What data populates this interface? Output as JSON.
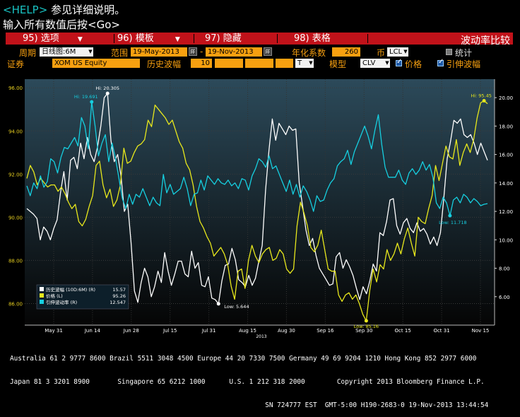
{
  "header": {
    "help_key": "<HELP>",
    "help_text": "参见详细说明。",
    "prompt": "输入所有数值后按<Go>"
  },
  "menu": {
    "tabs": [
      {
        "num": "95)",
        "label": "选项"
      },
      {
        "num": "96)",
        "label": "模板"
      },
      {
        "num": "97)",
        "label": "隐藏"
      },
      {
        "num": "98)",
        "label": "表格"
      }
    ],
    "title": "波动率比较"
  },
  "controls": {
    "period_label": "周期",
    "period_value": "日线图:6M",
    "range_label": "范围",
    "start_date": "19-May-2013",
    "date_sep": "-",
    "end_date": "19-Nov-2013",
    "annualize_label": "年化系数",
    "annualize_value": "260",
    "currency_label": "币",
    "currency_value": "LCL",
    "stats_label": "统计",
    "security_label": "证券",
    "security_value": "XOM US Equity",
    "hist_vol_label": "历史波幅",
    "hist_vol_value": "10",
    "hist_vol_unit": "T",
    "model_label": "模型",
    "model_value": "CLV",
    "price_label": "价格",
    "implied_label": "引伸波幅"
  },
  "colors": {
    "background": "#000000",
    "menubar": "#c1121a",
    "field": "#f7a010",
    "hist_vol": "#ffffff",
    "price": "#e8e81c",
    "implied_vol": "#16cfe0"
  },
  "chart_data": {
    "type": "line",
    "x_ticks": [
      "May 31",
      "Jun 14",
      "Jun 28",
      "Jul 15",
      "Jul 31",
      "Aug 15",
      "Aug 30",
      "Sep 16",
      "Sep 30",
      "Oct 15",
      "Oct 31",
      "Nov 15"
    ],
    "x_year": "2013",
    "left_axis": {
      "ticks": [
        "86.00",
        "88.00",
        "90.00",
        "92.00",
        "94.00",
        "96.00"
      ],
      "range": [
        85.0,
        96.4
      ]
    },
    "right_axis": {
      "ticks": [
        "6.00",
        "8.00",
        "10.00",
        "12.00",
        "14.00",
        "16.00",
        "18.00",
        "20.00"
      ],
      "range": [
        4.0,
        21.3
      ]
    },
    "series": [
      {
        "name": "历史波幅 (10D:6M) (R)",
        "legend_value": "15.57",
        "axis": "right",
        "color": "#ffffff",
        "values": [
          12.2,
          12.0,
          11.8,
          11.5,
          10.0,
          10.9,
          10.6,
          10.0,
          10.8,
          11.4,
          13.3,
          14.8,
          12.8,
          15.6,
          15.8,
          15.0,
          16.8,
          15.7,
          17.2,
          16.0,
          15.5,
          16.5,
          18.0,
          20.0,
          20.3,
          17.0,
          15.5,
          16.0,
          14.5,
          12.0,
          12.5,
          9.8,
          6.4,
          5.6,
          7.0,
          8.0,
          7.4,
          6.0,
          6.7,
          7.8,
          7.0,
          9.1,
          7.8,
          6.8,
          7.6,
          8.5,
          8.5,
          7.6,
          7.4,
          9.2,
          8.0,
          8.4,
          6.8,
          6.7,
          7.4,
          5.9,
          5.8,
          5.5,
          7.1,
          8.2,
          8.3,
          9.4,
          8.6,
          7.2,
          7.0,
          6.7,
          7.5,
          6.8,
          7.3,
          8.5,
          9.6,
          13.5,
          16.3,
          18.5,
          17.0,
          18.2,
          17.8,
          17.4,
          18.0,
          17.7,
          17.8,
          14.0,
          12.4,
          10.7,
          9.6,
          10.1,
          8.9,
          8.0,
          7.6,
          7.2,
          6.8,
          6.9,
          8.8,
          9.1,
          8.0,
          8.6,
          8.1,
          7.5,
          6.6,
          5.8,
          6.7,
          6.2,
          7.1,
          8.3,
          7.8,
          10.5,
          10.3,
          11.3,
          12.8,
          12.9,
          11.0,
          10.4,
          11.2,
          11.5,
          10.8,
          10.5,
          11.2,
          10.6,
          10.8,
          10.4,
          9.7,
          10.2,
          9.6,
          10.5,
          12.9,
          15.7,
          16.9,
          18.4,
          18.2,
          18.5,
          17.4,
          17.2,
          17.4,
          16.8,
          16.0,
          16.8,
          16.2,
          15.6
        ]
      },
      {
        "name": "价格 (L)",
        "legend_value": "95.26",
        "axis": "left",
        "color": "#e8e81c",
        "values": [
          91.8,
          92.4,
          92.1,
          91.5,
          91.8,
          91.6,
          91.4,
          91.5,
          91.5,
          91.2,
          91.4,
          91.1,
          90.7,
          90.4,
          90.6,
          89.8,
          89.6,
          89.9,
          90.5,
          91.0,
          92.4,
          92.6,
          91.5,
          90.9,
          91.3,
          90.5,
          90.8,
          91.5,
          93.2,
          92.5,
          92.6,
          93.0,
          93.3,
          93.4,
          93.6,
          94.5,
          94.2,
          95.2,
          95.0,
          94.8,
          94.6,
          94.3,
          94.5,
          94.0,
          93.5,
          93.2,
          92.5,
          92.2,
          91.5,
          90.5,
          89.8,
          89.5,
          89.1,
          88.8,
          88.2,
          88.4,
          88.6,
          88.3,
          87.8,
          86.8,
          86.2,
          87.5,
          87.6,
          86.7,
          88.0,
          88.7,
          88.2,
          87.9,
          88.3,
          88.5,
          88.6,
          88.0,
          88.1,
          88.5,
          88.3,
          87.6,
          87.4,
          87.6,
          89.6,
          90.7,
          90.2,
          89.6,
          88.6,
          88.4,
          88.7,
          89.4,
          88.5,
          87.6,
          87.5,
          87.5,
          86.4,
          86.1,
          86.4,
          86.5,
          86.2,
          86.4,
          86.0,
          85.5,
          85.2,
          86.6,
          87.6,
          87.0,
          87.8,
          87.6,
          88.5,
          88.0,
          88.3,
          88.8,
          88.3,
          89.0,
          89.5,
          88.8,
          88.2,
          90.0,
          89.8,
          89.7,
          90.4,
          91.0,
          92.4,
          91.7,
          92.5,
          93.3,
          92.8,
          92.7,
          93.6,
          92.4,
          93.0,
          93.4,
          93.0,
          93.6,
          94.6,
          95.3,
          95.4,
          95.26
        ]
      },
      {
        "name": "引伸波动率 (R)",
        "legend_value": "12.547",
        "axis": "right",
        "color": "#16cfe0",
        "values": [
          13.8,
          13.1,
          14.0,
          13.6,
          14.5,
          13.7,
          14.1,
          15.7,
          15.5,
          14.7,
          15.8,
          16.5,
          16.4,
          16.8,
          17.2,
          16.6,
          18.6,
          18.0,
          16.4,
          19.7,
          18.0,
          15.9,
          16.8,
          17.4,
          15.5,
          16.8,
          15.7,
          14.3,
          12.9,
          12.2,
          13.2,
          12.5,
          13.2,
          13.0,
          13.6,
          13.0,
          12.4,
          13.0,
          12.6,
          12.4,
          14.6,
          13.3,
          13.9,
          13.2,
          13.4,
          13.6,
          14.4,
          13.6,
          12.4,
          13.2,
          13.3,
          14.2,
          13.5,
          14.5,
          14.2,
          13.9,
          14.3,
          14.0,
          13.9,
          14.2,
          13.8,
          14.0,
          13.6,
          14.3,
          14.2,
          13.5,
          14.5,
          15.0,
          15.7,
          15.5,
          15.1,
          15.9,
          15.0,
          15.2,
          14.6,
          14.0,
          13.4,
          14.2,
          13.2,
          13.9,
          13.0,
          13.8,
          13.4,
          12.8,
          12.0,
          13.1,
          12.7,
          12.8,
          13.5,
          14.0,
          14.3,
          15.2,
          15.5,
          15.7,
          16.3,
          15.3,
          16.2,
          16.8,
          17.4,
          18.0,
          17.3,
          16.4,
          17.7,
          18.8,
          16.7,
          15.1,
          14.4,
          14.4,
          14.4,
          14.9,
          14.2,
          13.9,
          14.7,
          15.0,
          14.6,
          14.9,
          15.5,
          14.9,
          15.3,
          14.4,
          12.6,
          12.2,
          13.0,
          12.6,
          11.7,
          12.8,
          13.0,
          12.6,
          13.2,
          13.0,
          12.6,
          12.9,
          12.7,
          12.4,
          12.5,
          12.547
        ]
      }
    ],
    "annotations": [
      {
        "text": "Hi: 20.305"
      },
      {
        "text": "Hi: 19.691"
      },
      {
        "text": "Low: 5.644"
      },
      {
        "text": "Hi: 95.45"
      },
      {
        "text": "Low: 85.16"
      },
      {
        "text": "Low: 11.718"
      }
    ]
  },
  "footer": {
    "line1": "Australia 61 2 9777 8600 Brazil 5511 3048 4500 Europe 44 20 7330 7500 Germany 49 69 9204 1210 Hong Kong 852 2977 6000",
    "line2": "Japan 81 3 3201 8900       Singapore 65 6212 1000      U.S. 1 212 318 2000        Copyright 2013 Bloomberg Finance L.P.",
    "line3": "                                                                SN 724777 EST  GMT-5:00 H190-2683-0 19-Nov-2013 13:44:54"
  }
}
